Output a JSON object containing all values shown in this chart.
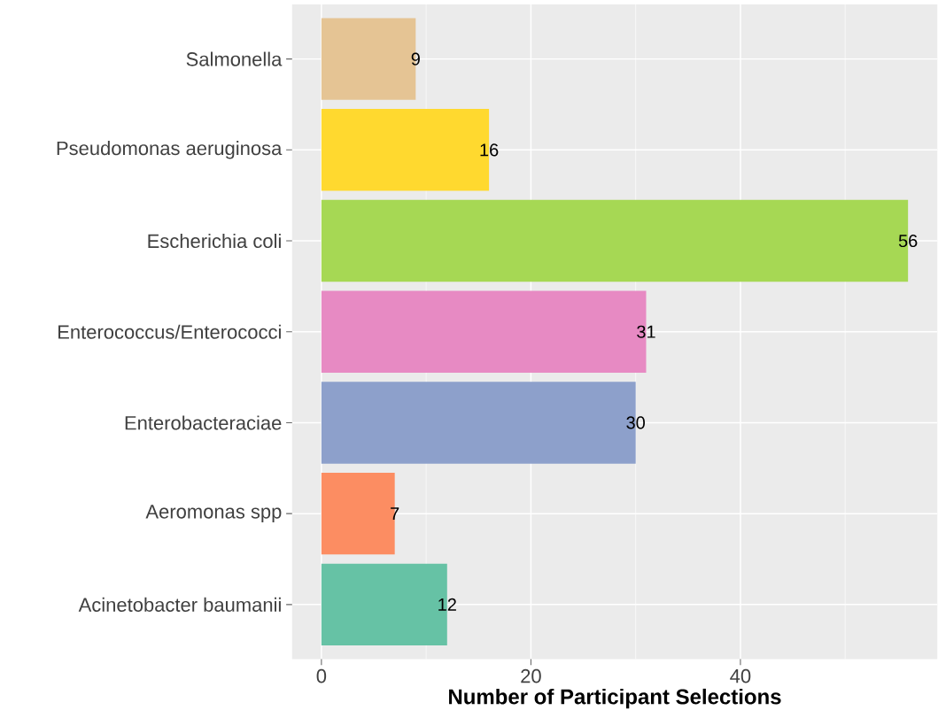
{
  "chart_data": {
    "type": "bar",
    "orientation": "horizontal",
    "xlabel": "Number of Participant Selections",
    "categories": [
      "Salmonella",
      "Pseudomonas aeruginosa",
      "Escherichia coli",
      "Enterococcus/Enterococci",
      "Enterobacteraciae",
      "Aeromonas spp",
      "Acinetobacter baumanii"
    ],
    "values": [
      9,
      16,
      56,
      31,
      30,
      7,
      12
    ],
    "colors": [
      "#e5c494",
      "#ffd92f",
      "#a6d854",
      "#e78ac3",
      "#8da0cb",
      "#fc8d62",
      "#66c2a5"
    ],
    "xlim": [
      -2.8,
      58.8
    ],
    "xticks": [
      0,
      {
        "value": 10,
        "label": null
      },
      20,
      {
        "value": 30,
        "label": null
      },
      40,
      {
        "value": 50,
        "label": null
      }
    ],
    "grid": true,
    "data_labels": true
  }
}
